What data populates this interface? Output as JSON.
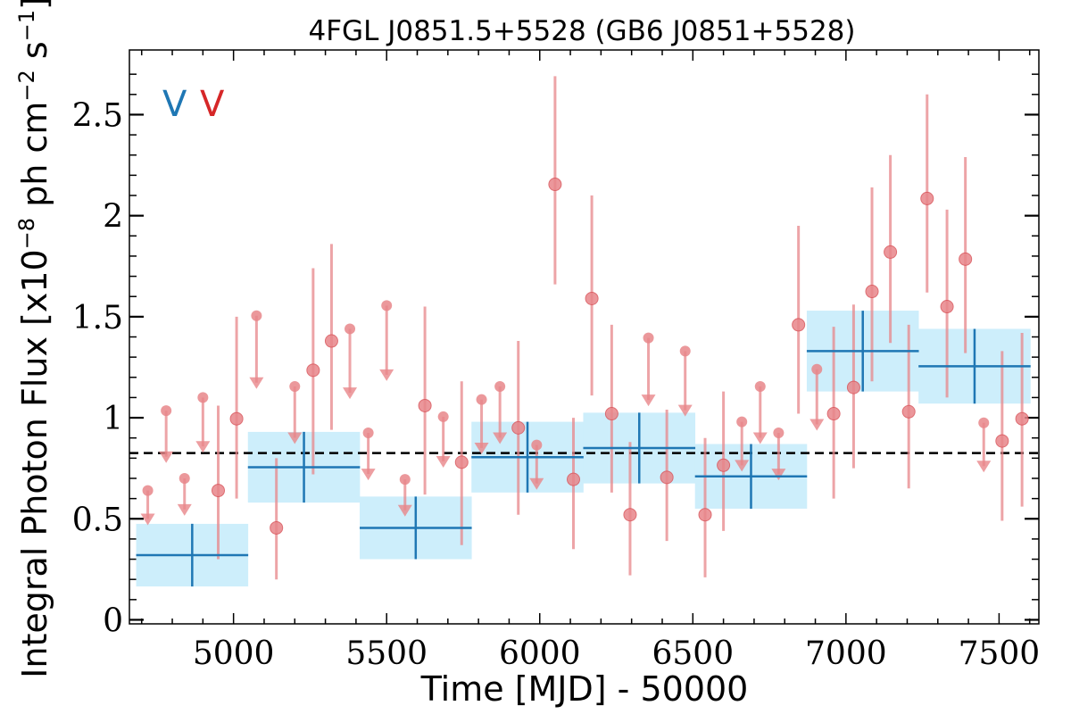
{
  "chart_data": {
    "type": "scatter",
    "title": "4FGL J0851.5+5528 (GB6 J0851+5528)",
    "xlabel": "Time [MJD] - 50000",
    "ylabel": "Integral Photon Flux [x10",
    "ylabel_exp1": "−8",
    "ylabel_mid": " ph cm",
    "ylabel_exp2": "−2",
    "ylabel_mid2": " s",
    "ylabel_exp3": "−1",
    "ylabel_end": "]",
    "xlim": [
      4660,
      7630
    ],
    "ylim": [
      -0.02,
      2.82
    ],
    "xticks": [
      5000,
      5500,
      6000,
      6500,
      7000,
      7500
    ],
    "xtick_labels": [
      "5000",
      "5500",
      "6000",
      "6500",
      "7000",
      "7500"
    ],
    "yticks": [
      0,
      0.5,
      1,
      1.5,
      2,
      2.5
    ],
    "ytick_labels": [
      "0",
      "0.5",
      "1",
      "1.5",
      "2",
      "2.5"
    ],
    "mean_flux": 0.825,
    "legend": {
      "placement": "top-left",
      "entries": [
        {
          "label": "V",
          "color": "#1f77b4"
        },
        {
          "label": "V",
          "color": "#d62728"
        }
      ]
    },
    "colors": {
      "fine": "#e8868a",
      "coarse_line": "#1f77b4",
      "coarse_box": "#cdeefb",
      "mean_line": "#000000"
    },
    "coarse_bins": [
      {
        "x": 4865,
        "xerr": 183,
        "y": 0.32,
        "yerr": 0.155
      },
      {
        "x": 5230,
        "xerr": 183,
        "y": 0.755,
        "yerr": 0.175
      },
      {
        "x": 5595,
        "xerr": 183,
        "y": 0.455,
        "yerr": 0.155
      },
      {
        "x": 5960,
        "xerr": 183,
        "y": 0.805,
        "yerr": 0.175
      },
      {
        "x": 6325,
        "xerr": 183,
        "y": 0.85,
        "yerr": 0.175
      },
      {
        "x": 6690,
        "xerr": 183,
        "y": 0.71,
        "yerr": 0.16
      },
      {
        "x": 7055,
        "xerr": 183,
        "y": 1.33,
        "yerr": 0.2
      },
      {
        "x": 7420,
        "xerr": 183,
        "y": 1.255,
        "yerr": 0.185
      }
    ],
    "fine_detections": [
      {
        "x": 5010,
        "y": 0.995,
        "lo": 0.6,
        "hi": 1.5
      },
      {
        "x": 4950,
        "y": 0.64,
        "lo": 0.3,
        "hi": 1.06
      },
      {
        "x": 5140,
        "y": 0.455,
        "lo": 0.2,
        "hi": 0.8
      },
      {
        "x": 5260,
        "y": 1.235,
        "lo": 0.72,
        "hi": 1.74
      },
      {
        "x": 5320,
        "y": 1.38,
        "lo": 0.94,
        "hi": 1.86
      },
      {
        "x": 5625,
        "y": 1.06,
        "lo": 0.62,
        "hi": 1.55
      },
      {
        "x": 5745,
        "y": 0.78,
        "lo": 0.37,
        "hi": 1.18
      },
      {
        "x": 5930,
        "y": 0.95,
        "lo": 0.52,
        "hi": 1.38
      },
      {
        "x": 6050,
        "y": 2.155,
        "lo": 1.66,
        "hi": 2.69
      },
      {
        "x": 6110,
        "y": 0.695,
        "lo": 0.35,
        "hi": 1.0
      },
      {
        "x": 6170,
        "y": 1.59,
        "lo": 1.11,
        "hi": 2.1
      },
      {
        "x": 6235,
        "y": 1.02,
        "lo": 0.63,
        "hi": 1.46
      },
      {
        "x": 6295,
        "y": 0.52,
        "lo": 0.22,
        "hi": 0.88
      },
      {
        "x": 6415,
        "y": 0.705,
        "lo": 0.39,
        "hi": 1.04
      },
      {
        "x": 6540,
        "y": 0.52,
        "lo": 0.21,
        "hi": 0.9
      },
      {
        "x": 6600,
        "y": 0.765,
        "lo": 0.44,
        "hi": 1.13
      },
      {
        "x": 6845,
        "y": 1.46,
        "lo": 1.02,
        "hi": 1.95
      },
      {
        "x": 6960,
        "y": 1.02,
        "lo": 0.6,
        "hi": 1.45
      },
      {
        "x": 7025,
        "y": 1.15,
        "lo": 0.75,
        "hi": 1.56
      },
      {
        "x": 7085,
        "y": 1.625,
        "lo": 1.18,
        "hi": 2.14
      },
      {
        "x": 7145,
        "y": 1.82,
        "lo": 1.37,
        "hi": 2.3
      },
      {
        "x": 7205,
        "y": 1.03,
        "lo": 0.65,
        "hi": 1.46
      },
      {
        "x": 7265,
        "y": 2.085,
        "lo": 1.62,
        "hi": 2.6
      },
      {
        "x": 7330,
        "y": 1.55,
        "lo": 1.1,
        "hi": 2.03
      },
      {
        "x": 7390,
        "y": 1.785,
        "lo": 1.32,
        "hi": 2.29
      },
      {
        "x": 7510,
        "y": 0.885,
        "lo": 0.49,
        "hi": 1.33
      },
      {
        "x": 7575,
        "y": 0.995,
        "lo": 0.56,
        "hi": 1.42
      }
    ],
    "fine_upper_limits": [
      {
        "x": 4720,
        "y": 0.64
      },
      {
        "x": 4780,
        "y": 1.035
      },
      {
        "x": 4840,
        "y": 0.7
      },
      {
        "x": 4900,
        "y": 1.1
      },
      {
        "x": 5075,
        "y": 1.505
      },
      {
        "x": 5200,
        "y": 1.155
      },
      {
        "x": 5380,
        "y": 1.44
      },
      {
        "x": 5440,
        "y": 0.925
      },
      {
        "x": 5500,
        "y": 1.555
      },
      {
        "x": 5560,
        "y": 0.695
      },
      {
        "x": 5685,
        "y": 1.005
      },
      {
        "x": 5810,
        "y": 1.09
      },
      {
        "x": 5870,
        "y": 1.155
      },
      {
        "x": 5990,
        "y": 0.865
      },
      {
        "x": 6355,
        "y": 1.395
      },
      {
        "x": 6475,
        "y": 1.33
      },
      {
        "x": 6660,
        "y": 0.98
      },
      {
        "x": 6720,
        "y": 1.155
      },
      {
        "x": 6780,
        "y": 0.925
      },
      {
        "x": 6905,
        "y": 1.24
      },
      {
        "x": 7450,
        "y": 0.975
      }
    ]
  }
}
